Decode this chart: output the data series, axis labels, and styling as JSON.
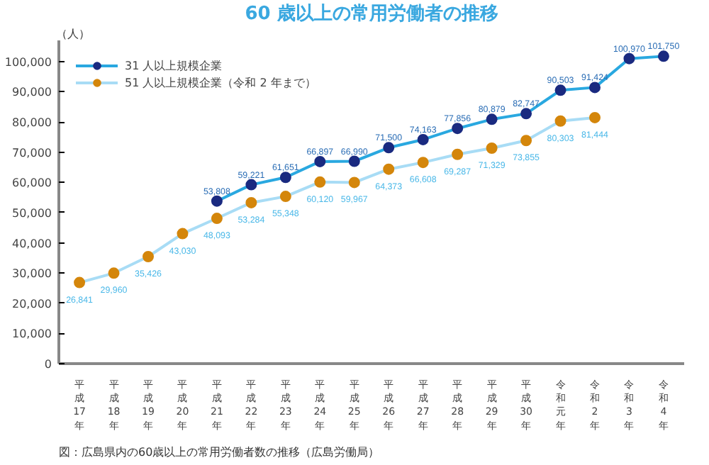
{
  "chart_data": {
    "type": "line",
    "title": "60 歳以上の常用労働者の推移",
    "ylabel": "（人）",
    "annotations": [
      "図：広島県内の60歳以上の常用労働者数の推移（広島労働局）"
    ],
    "categories": [
      "平成17年",
      "平成18年",
      "平成19年",
      "平成20年",
      "平成21年",
      "平成22年",
      "平成23年",
      "平成24年",
      "平成25年",
      "平成26年",
      "平成27年",
      "平成28年",
      "平成29年",
      "平成30年",
      "令和元年",
      "令和2年",
      "令和3年",
      "令和4年"
    ],
    "series": [
      {
        "name": "31 人以上規模企業",
        "color": "#1a2a80",
        "values": [
          null,
          null,
          null,
          null,
          53808,
          59221,
          61651,
          66897,
          66990,
          71500,
          74163,
          77856,
          80879,
          82747,
          90503,
          91424,
          100970,
          101750
        ],
        "value_labels": [
          null,
          null,
          null,
          null,
          "53,808",
          "59,221",
          "61,651",
          "66,897",
          "66,990",
          "71,500",
          "74,163",
          "77,856",
          "80,879",
          "82,747",
          "90,503",
          "91,424",
          "100,970",
          "101,750"
        ]
      },
      {
        "name": "51 人以上規模企業（令和 2 年まで）",
        "color": "#d4860b",
        "values": [
          26841,
          29960,
          35426,
          43030,
          48093,
          53284,
          55348,
          60120,
          59967,
          64373,
          66608,
          69287,
          71329,
          73855,
          80303,
          81444,
          null,
          null
        ],
        "value_labels": [
          "26,841",
          "29,960",
          "35,426",
          "43,030",
          "48,093",
          "53,284",
          "55,348",
          "60,120",
          "59,967",
          "64,373",
          "66,608",
          "69,287",
          "71,329",
          "73,855",
          "80,303",
          "81,444",
          null,
          null
        ]
      }
    ],
    "ylim": [
      0,
      107000
    ],
    "yticks": [
      {
        "value": 0,
        "label": "0"
      },
      {
        "value": 10000,
        "label": "10,000"
      },
      {
        "value": 20000,
        "label": "20,000"
      },
      {
        "value": 30000,
        "label": "30,000"
      },
      {
        "value": 40000,
        "label": "40,000"
      },
      {
        "value": 50000,
        "label": "50,000"
      },
      {
        "value": 60000,
        "label": "60,000"
      },
      {
        "value": 70000,
        "label": "70,000"
      },
      {
        "value": 80000,
        "label": "80,000"
      },
      {
        "value": 90000,
        "label": "90,000"
      },
      {
        "value": 100000,
        "label": "100,000"
      }
    ],
    "data_labels": true,
    "marker": "circle",
    "legend": "top left",
    "grid": false
  }
}
